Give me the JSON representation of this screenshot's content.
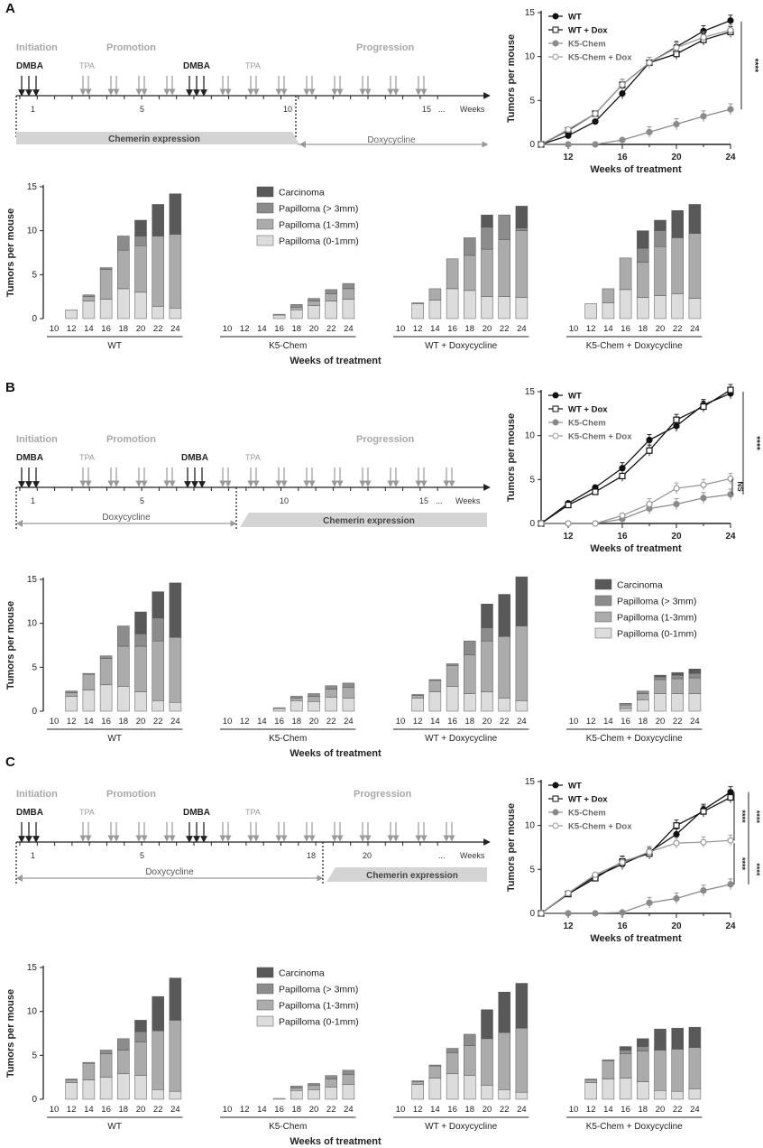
{
  "colors": {
    "carcinoma": "#595959",
    "pap_gt3": "#8c8c8c",
    "pap_1_3": "#ababab",
    "pap_0_1": "#dcdcdc",
    "black": "#222222",
    "grey_arrow": "#9a9a9a",
    "phase_grey": "#a8a8a8",
    "chem_band": "#d4d4d4",
    "dox_band": "#9a9a9a",
    "k5_line": "#8a8a8a",
    "k5dox_line": "#8a8a8a"
  },
  "bar_common": {
    "ylabel": "Tumors per mouse",
    "xlabel": "Weeks of treatment",
    "yticks": [
      "0",
      "5",
      "10",
      "15"
    ],
    "weeks": [
      "10",
      "12",
      "14",
      "16",
      "18",
      "20",
      "22",
      "24"
    ],
    "groups": [
      "WT",
      "K5-Chem",
      "WT + Doxycycline",
      "K5-Chem  + Doxycycline"
    ],
    "legend": [
      "Carcinoma",
      "Papilloma (> 3mm)",
      "Papilloma (1-3mm)",
      "Papilloma (0-1mm)"
    ]
  },
  "line_common": {
    "ylabel": "Tumors per mouse",
    "xlabel": "Weeks of treatment",
    "xticks": [
      "12",
      "16",
      "20",
      "24"
    ],
    "yticks": [
      "0",
      "5",
      "10",
      "15"
    ],
    "legend": [
      "WT",
      "WT + Dox",
      "K5-Chem",
      "K5-Chem + Dox"
    ]
  },
  "panels": [
    {
      "letter": "A",
      "schedule": {
        "initiation": "Initiation",
        "promotion": "Promotion",
        "progression": "Progression",
        "dmba1": "DMBA",
        "dmba2": "DMBA",
        "tpa1": "TPA",
        "tpa2": "TPA",
        "ticks": [
          "1",
          "5",
          "10",
          "15"
        ],
        "ellipsis": "...",
        "weeks": "Weeks",
        "band_left": "Chemerin expression",
        "band_right": "Doxycycline"
      },
      "significance": [
        "****"
      ],
      "chart_data": {
        "type": "line",
        "title": "",
        "xlabel": "Weeks of treatment",
        "ylabel": "Tumors per mouse",
        "xlim": [
          10,
          24
        ],
        "ylim": [
          0,
          15
        ],
        "x": [
          10,
          12,
          14,
          16,
          18,
          20,
          22,
          24
        ],
        "series": [
          {
            "name": "WT",
            "values": [
              0,
              1.0,
              2.6,
              5.8,
              9.3,
              11.1,
              12.9,
              14.1
            ]
          },
          {
            "name": "WT + Dox",
            "values": [
              0,
              1.6,
              3.5,
              6.8,
              9.3,
              10.3,
              11.9,
              12.8
            ]
          },
          {
            "name": "K5-Chem",
            "values": [
              0,
              0,
              0,
              0.5,
              1.4,
              2.3,
              3.2,
              4.0
            ]
          },
          {
            "name": "K5-Chem + Dox",
            "values": [
              0,
              1.7,
              3.5,
              6.8,
              9.3,
              11.0,
              12.2,
              13.0
            ]
          }
        ]
      },
      "bar_data": {
        "type": "bar",
        "stacked": true,
        "xlabel": "Weeks of treatment",
        "ylabel": "Tumors per mouse",
        "ylim": [
          0,
          15
        ],
        "groups": [
          {
            "name": "WT",
            "weeks": [
              10,
              12,
              14,
              16,
              18,
              20,
              22,
              24
            ],
            "pap_0_1": [
              0,
              1.0,
              2.0,
              2.2,
              3.4,
              3.0,
              1.4,
              1.2
            ],
            "pap_1_3": [
              0,
              0,
              0.5,
              3.4,
              4.4,
              5.3,
              8.0,
              8.4
            ],
            "pap_gt3": [
              0,
              0,
              0.2,
              0.2,
              1.6,
              1.1,
              0,
              0
            ],
            "carcinoma": [
              0,
              0,
              0,
              0,
              0,
              1.8,
              3.6,
              4.6
            ]
          },
          {
            "name": "K5-Chem",
            "weeks": [
              10,
              12,
              14,
              16,
              18,
              20,
              22,
              24
            ],
            "pap_0_1": [
              0,
              0,
              0,
              0.4,
              1.0,
              1.5,
              2.0,
              2.2
            ],
            "pap_1_3": [
              0,
              0,
              0,
              0.1,
              0.3,
              0.5,
              0.8,
              1.2
            ],
            "pap_gt3": [
              0,
              0,
              0,
              0,
              0.3,
              0.3,
              0.5,
              0.6
            ],
            "carcinoma": [
              0,
              0,
              0,
              0,
              0,
              0,
              0,
              0
            ]
          },
          {
            "name": "WT + Doxycycline",
            "weeks": [
              10,
              12,
              14,
              16,
              18,
              20,
              22,
              24
            ],
            "pap_0_1": [
              0,
              1.7,
              2.1,
              3.4,
              3.2,
              2.5,
              2.5,
              2.4
            ],
            "pap_1_3": [
              0,
              0.1,
              1.3,
              3.4,
              4.0,
              5.4,
              6.5,
              7.6
            ],
            "pap_gt3": [
              0,
              0,
              0,
              0,
              2.0,
              2.5,
              2.8,
              0.3
            ],
            "carcinoma": [
              0,
              0,
              0,
              0,
              0,
              1.4,
              0,
              2.5
            ]
          },
          {
            "name": "K5-Chem  + Doxycycline",
            "weeks": [
              10,
              12,
              14,
              16,
              18,
              20,
              22,
              24
            ],
            "pap_0_1": [
              0,
              1.7,
              1.8,
              3.3,
              2.4,
              2.6,
              2.8,
              2.3
            ],
            "pap_1_3": [
              0,
              0,
              1.6,
              3.6,
              4.0,
              5.6,
              6.4,
              7.4
            ],
            "pap_gt3": [
              0,
              0,
              0,
              0,
              1.6,
              1.8,
              0,
              0
            ],
            "carcinoma": [
              0,
              0,
              0,
              0,
              2.0,
              1.2,
              3.1,
              3.3
            ]
          }
        ]
      }
    },
    {
      "letter": "B",
      "schedule": {
        "initiation": "Initiation",
        "promotion": "Promotion",
        "progression": "Progression",
        "dmba1": "DMBA",
        "dmba2": "DMBA",
        "tpa1": "TPA",
        "tpa2": "TPA",
        "ticks": [
          "1",
          "5",
          "10",
          "15"
        ],
        "ellipsis": "...",
        "weeks": "Weeks",
        "band_left": "Doxycycline",
        "band_right": "Chemerin expression"
      },
      "significance": [
        "****",
        "NS"
      ],
      "chart_data": {
        "type": "line",
        "title": "",
        "xlabel": "Weeks of treatment",
        "ylabel": "Tumors per mouse",
        "xlim": [
          10,
          24
        ],
        "ylim": [
          0,
          15
        ],
        "x": [
          10,
          12,
          14,
          16,
          18,
          20,
          22,
          24
        ],
        "series": [
          {
            "name": "WT",
            "values": [
              0,
              2.3,
              4.1,
              6.3,
              9.5,
              11.1,
              13.5,
              14.8
            ]
          },
          {
            "name": "WT + Dox",
            "values": [
              0,
              2.1,
              3.6,
              5.4,
              8.3,
              11.8,
              13.3,
              15.2
            ]
          },
          {
            "name": "K5-Chem",
            "values": [
              0,
              0,
              0,
              0.5,
              1.7,
              2.2,
              2.9,
              3.3
            ]
          },
          {
            "name": "K5-Chem + Dox",
            "values": [
              0,
              0,
              0,
              0.9,
              2.2,
              4.0,
              4.4,
              5.1
            ]
          }
        ]
      },
      "bar_data": {
        "type": "bar",
        "stacked": true,
        "xlabel": "Weeks of treatment",
        "ylabel": "Tumors per mouse",
        "ylim": [
          0,
          15
        ],
        "groups": [
          {
            "name": "WT",
            "weeks": [
              10,
              12,
              14,
              16,
              18,
              20,
              22,
              24
            ],
            "pap_0_1": [
              0,
              1.7,
              2.4,
              3.0,
              2.8,
              2.2,
              1.2,
              1.0
            ],
            "pap_1_3": [
              0,
              0.4,
              1.8,
              3.0,
              4.6,
              5.2,
              6.8,
              7.4
            ],
            "pap_gt3": [
              0,
              0.2,
              0.1,
              0.3,
              2.3,
              1.4,
              2.6,
              0
            ],
            "carcinoma": [
              0,
              0,
              0,
              0,
              0,
              2.5,
              3.0,
              6.2
            ]
          },
          {
            "name": "K5-Chem",
            "weeks": [
              10,
              12,
              14,
              16,
              18,
              20,
              22,
              24
            ],
            "pap_0_1": [
              0,
              0,
              0,
              0.3,
              1.2,
              1.1,
              1.6,
              1.5
            ],
            "pap_1_3": [
              0,
              0,
              0,
              0.1,
              0.3,
              0.6,
              0.9,
              1.2
            ],
            "pap_gt3": [
              0,
              0,
              0,
              0,
              0.2,
              0.3,
              0.4,
              0.5
            ],
            "carcinoma": [
              0,
              0,
              0,
              0,
              0,
              0,
              0,
              0
            ]
          },
          {
            "name": "WT + Doxycycline",
            "weeks": [
              10,
              12,
              14,
              16,
              18,
              20,
              22,
              24
            ],
            "pap_0_1": [
              0,
              1.5,
              2.2,
              2.8,
              2.0,
              2.2,
              1.5,
              1.2
            ],
            "pap_1_3": [
              0,
              0.3,
              1.3,
              2.4,
              4.4,
              5.8,
              7.0,
              8.5
            ],
            "pap_gt3": [
              0,
              0.1,
              0.1,
              0.2,
              1.6,
              1.5,
              0,
              0
            ],
            "carcinoma": [
              0,
              0,
              0,
              0,
              0,
              2.7,
              4.8,
              5.6
            ]
          },
          {
            "name": "K5-Chem  + Doxycycline",
            "weeks": [
              10,
              12,
              14,
              16,
              18,
              20,
              22,
              24
            ],
            "pap_0_1": [
              0,
              0,
              0,
              0.3,
              1.3,
              2.0,
              2.0,
              2.0
            ],
            "pap_1_3": [
              0,
              0,
              0,
              0.4,
              0.7,
              1.6,
              1.7,
              1.8
            ],
            "pap_gt3": [
              0,
              0,
              0,
              0.2,
              0.3,
              0.3,
              0.4,
              0.5
            ],
            "carcinoma": [
              0,
              0,
              0,
              0,
              0,
              0.2,
              0.3,
              0.5
            ]
          }
        ]
      }
    },
    {
      "letter": "C",
      "schedule": {
        "initiation": "Initiation",
        "promotion": "Promotion",
        "progression": "Progression",
        "dmba1": "DMBA",
        "dmba2": "DMBA",
        "tpa1": "TPA",
        "tpa2": "TPA",
        "ticks": [
          "1",
          "5",
          "18",
          "20"
        ],
        "ellipsis": "...",
        "weeks": "Weeks",
        "band_left": "Doxycycline",
        "band_right": "Chemerin expression"
      },
      "significance": [
        "****",
        "****",
        "****",
        "****"
      ],
      "chart_data": {
        "type": "line",
        "title": "",
        "xlabel": "Weeks of treatment",
        "ylabel": "Tumors per mouse",
        "xlim": [
          10,
          24
        ],
        "ylim": [
          0,
          15
        ],
        "x": [
          10,
          12,
          14,
          16,
          18,
          20,
          22,
          24
        ],
        "series": [
          {
            "name": "WT",
            "values": [
              0,
              2.3,
              4.2,
              5.6,
              7.0,
              9.0,
              11.8,
              13.8
            ]
          },
          {
            "name": "WT + Dox",
            "values": [
              0,
              2.2,
              4.0,
              5.9,
              6.8,
              10.0,
              11.6,
              13.2
            ]
          },
          {
            "name": "K5-Chem",
            "values": [
              0,
              0,
              0,
              0.1,
              1.2,
              1.7,
              2.6,
              3.3
            ]
          },
          {
            "name": "K5-Chem + Dox",
            "values": [
              0,
              2.3,
              4.4,
              5.8,
              7.0,
              8.0,
              8.1,
              8.3
            ]
          }
        ]
      },
      "bar_data": {
        "type": "bar",
        "stacked": true,
        "xlabel": "Weeks of treatment",
        "ylabel": "Tumors per mouse",
        "ylim": [
          0,
          15
        ],
        "groups": [
          {
            "name": "WT",
            "weeks": [
              10,
              12,
              14,
              16,
              18,
              20,
              22,
              24
            ],
            "pap_0_1": [
              0,
              1.9,
              2.2,
              2.5,
              2.9,
              2.7,
              1.1,
              0.9
            ],
            "pap_1_3": [
              0,
              0.3,
              1.9,
              2.7,
              2.7,
              3.8,
              6.7,
              8.1
            ],
            "pap_gt3": [
              0,
              0.1,
              0.1,
              0.4,
              1.3,
              1.2,
              0,
              0
            ],
            "carcinoma": [
              0,
              0,
              0,
              0,
              0,
              1.3,
              3.9,
              4.8
            ]
          },
          {
            "name": "K5-Chem",
            "weeks": [
              10,
              12,
              14,
              16,
              18,
              20,
              22,
              24
            ],
            "pap_0_1": [
              0,
              0,
              0,
              0.1,
              1.0,
              1.1,
              1.4,
              1.7
            ],
            "pap_1_3": [
              0,
              0,
              0,
              0,
              0.3,
              0.5,
              0.9,
              1.1
            ],
            "pap_gt3": [
              0,
              0,
              0,
              0,
              0.2,
              0.2,
              0.4,
              0.5
            ],
            "carcinoma": [
              0,
              0,
              0,
              0,
              0,
              0,
              0,
              0
            ]
          },
          {
            "name": "WT + Doxycycline",
            "weeks": [
              10,
              12,
              14,
              16,
              18,
              20,
              22,
              24
            ],
            "pap_0_1": [
              0,
              1.7,
              2.4,
              2.9,
              2.7,
              1.6,
              1.1,
              0.8
            ],
            "pap_1_3": [
              0,
              0.3,
              1.4,
              2.4,
              3.4,
              5.3,
              6.5,
              7.3
            ],
            "pap_gt3": [
              0,
              0.1,
              0.1,
              0.5,
              1.3,
              0,
              0,
              0
            ],
            "carcinoma": [
              0,
              0,
              0,
              0,
              0,
              3.3,
              4.6,
              5.1
            ]
          },
          {
            "name": "K5-Chem  + Doxycycline",
            "weeks": [
              10,
              12,
              14,
              16,
              18,
              20,
              22,
              24
            ],
            "pap_0_1": [
              0,
              1.9,
              2.3,
              2.4,
              2.0,
              1.0,
              0.9,
              1.2
            ],
            "pap_1_3": [
              0,
              0.3,
              2.1,
              2.8,
              3.5,
              4.6,
              4.8,
              4.7
            ],
            "pap_gt3": [
              0,
              0.1,
              0.1,
              0.4,
              0.5,
              0,
              0,
              0
            ],
            "carcinoma": [
              0,
              0,
              0,
              0.4,
              0.9,
              2.4,
              2.4,
              2.3
            ]
          }
        ]
      }
    }
  ]
}
